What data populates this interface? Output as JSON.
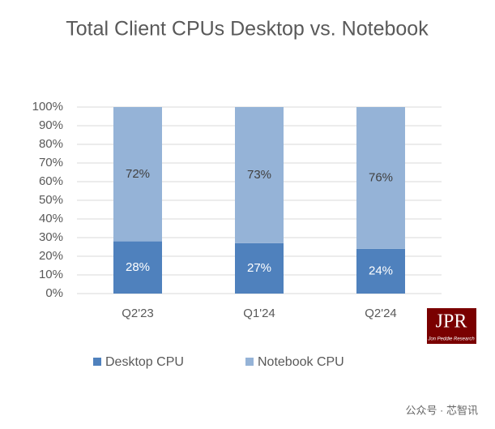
{
  "chart_data": {
    "type": "stacked-bar",
    "title": "Total Client CPUs Desktop vs. Notebook",
    "categories": [
      "Q2'23",
      "Q1'24",
      "Q2'24"
    ],
    "series": [
      {
        "name": "Desktop CPU",
        "color": "#4f81bd",
        "label_color": "#ffffff",
        "values": [
          28,
          27,
          24
        ],
        "value_labels": [
          "28%",
          "27%",
          "24%"
        ]
      },
      {
        "name": "Notebook CPU",
        "color": "#95b3d7",
        "label_color": "#404040",
        "values": [
          72,
          73,
          76
        ],
        "value_labels": [
          "72%",
          "73%",
          "76%"
        ]
      }
    ],
    "ylim": [
      0,
      100
    ],
    "yticks": [
      {
        "value": 0,
        "label": "0%"
      },
      {
        "value": 10,
        "label": "10%"
      },
      {
        "value": 20,
        "label": "20%"
      },
      {
        "value": 30,
        "label": "30%"
      },
      {
        "value": 40,
        "label": "40%"
      },
      {
        "value": 50,
        "label": "50%"
      },
      {
        "value": 60,
        "label": "60%"
      },
      {
        "value": 70,
        "label": "70%"
      },
      {
        "value": 80,
        "label": "80%"
      },
      {
        "value": 90,
        "label": "90%"
      },
      {
        "value": 100,
        "label": "100%"
      }
    ],
    "grid": true,
    "legend": "bottom"
  },
  "logo": {
    "title": "JPR",
    "subtitle": "Jon Peddie Research"
  },
  "watermark": "公众号 · 芯智讯"
}
